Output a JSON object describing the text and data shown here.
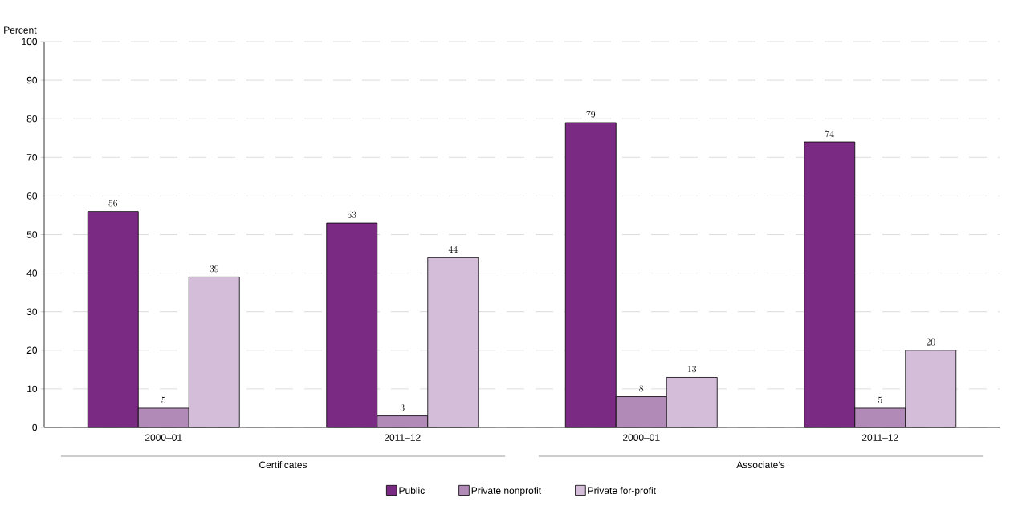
{
  "chart_data": {
    "type": "bar",
    "ylabel": "Percent",
    "categories": [
      "2000–01",
      "2011–12",
      "2000–01",
      "2011–12"
    ],
    "series": [
      {
        "name": "Public",
        "color": "#7b2a83",
        "values": [
          56,
          53,
          79,
          74
        ]
      },
      {
        "name": "Private nonprofit",
        "color": "#b18ab8",
        "values": [
          5,
          3,
          8,
          5
        ]
      },
      {
        "name": "Private for-profit",
        "color": "#d3bdd8",
        "values": [
          39,
          44,
          13,
          20
        ]
      }
    ],
    "annotations": [
      "Certificates",
      "Associate’s"
    ],
    "ylim": [
      0,
      100
    ],
    "yticks": [
      0,
      10,
      20,
      30,
      40,
      50,
      60,
      70,
      80,
      90,
      100
    ],
    "grid": "y",
    "legend": "bottom",
    "data_labels": true
  }
}
